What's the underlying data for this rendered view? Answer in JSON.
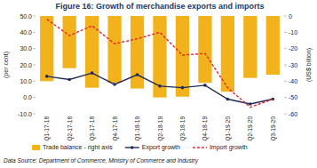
{
  "chart_data": {
    "type": "combo",
    "title": "Figure 16: Growth of merchandise exports and imports",
    "y_label": "(per cent)",
    "y2_label": "(US$ billion)",
    "source": "Data Source: Department of Commerce, Ministry of Commerce and Industry",
    "categories": [
      "Q1-17-18",
      "Q2-17-18",
      "Q3-17-18",
      "Q4-17-18",
      "Q1-18-19",
      "Q2-18-19",
      "Q3-18-19",
      "Q4-18-19",
      "Q1-19-20",
      "Q2-19-20",
      "Q3-19-20"
    ],
    "series": [
      {
        "name": "Trade balance - right axis",
        "type": "bar",
        "axis": "y2",
        "color": "#f2b21b",
        "values": [
          -40.0,
          -32.0,
          -44.0,
          -41.0,
          -44.5,
          -50.0,
          -49.5,
          -41.0,
          -46.5,
          -38.0,
          -36.0
        ]
      },
      {
        "name": "Export growth",
        "type": "line",
        "color": "#1f2b57",
        "marker": "circle",
        "line_style": "solid",
        "values": [
          13.0,
          11.0,
          15.0,
          8.0,
          14.0,
          7.0,
          6.0,
          7.5,
          -1.0,
          -4.0,
          -1.0
        ]
      },
      {
        "name": "Import growth",
        "type": "line",
        "color": "#e3242b",
        "marker": "none",
        "line_style": "dashed",
        "values": [
          48.0,
          38.0,
          44.0,
          33.0,
          36.0,
          40.0,
          26.0,
          27.0,
          6.0,
          -6.0,
          -1.0
        ]
      }
    ],
    "ylim": [
      -10,
      50
    ],
    "yticks": [
      {
        "value": -10,
        "label": "-10.0"
      },
      {
        "value": 0,
        "label": "0.0"
      },
      {
        "value": 10,
        "label": "10.0"
      },
      {
        "value": 20,
        "label": "20.0"
      },
      {
        "value": 30,
        "label": "30.0"
      },
      {
        "value": 40,
        "label": "40.0"
      },
      {
        "value": 50,
        "label": "50.0"
      }
    ],
    "y2lim": [
      -60,
      0
    ],
    "y2ticks": [
      -60,
      -50,
      -40,
      -30,
      -20,
      -10,
      0
    ],
    "grid": false,
    "legend": "bottom"
  }
}
